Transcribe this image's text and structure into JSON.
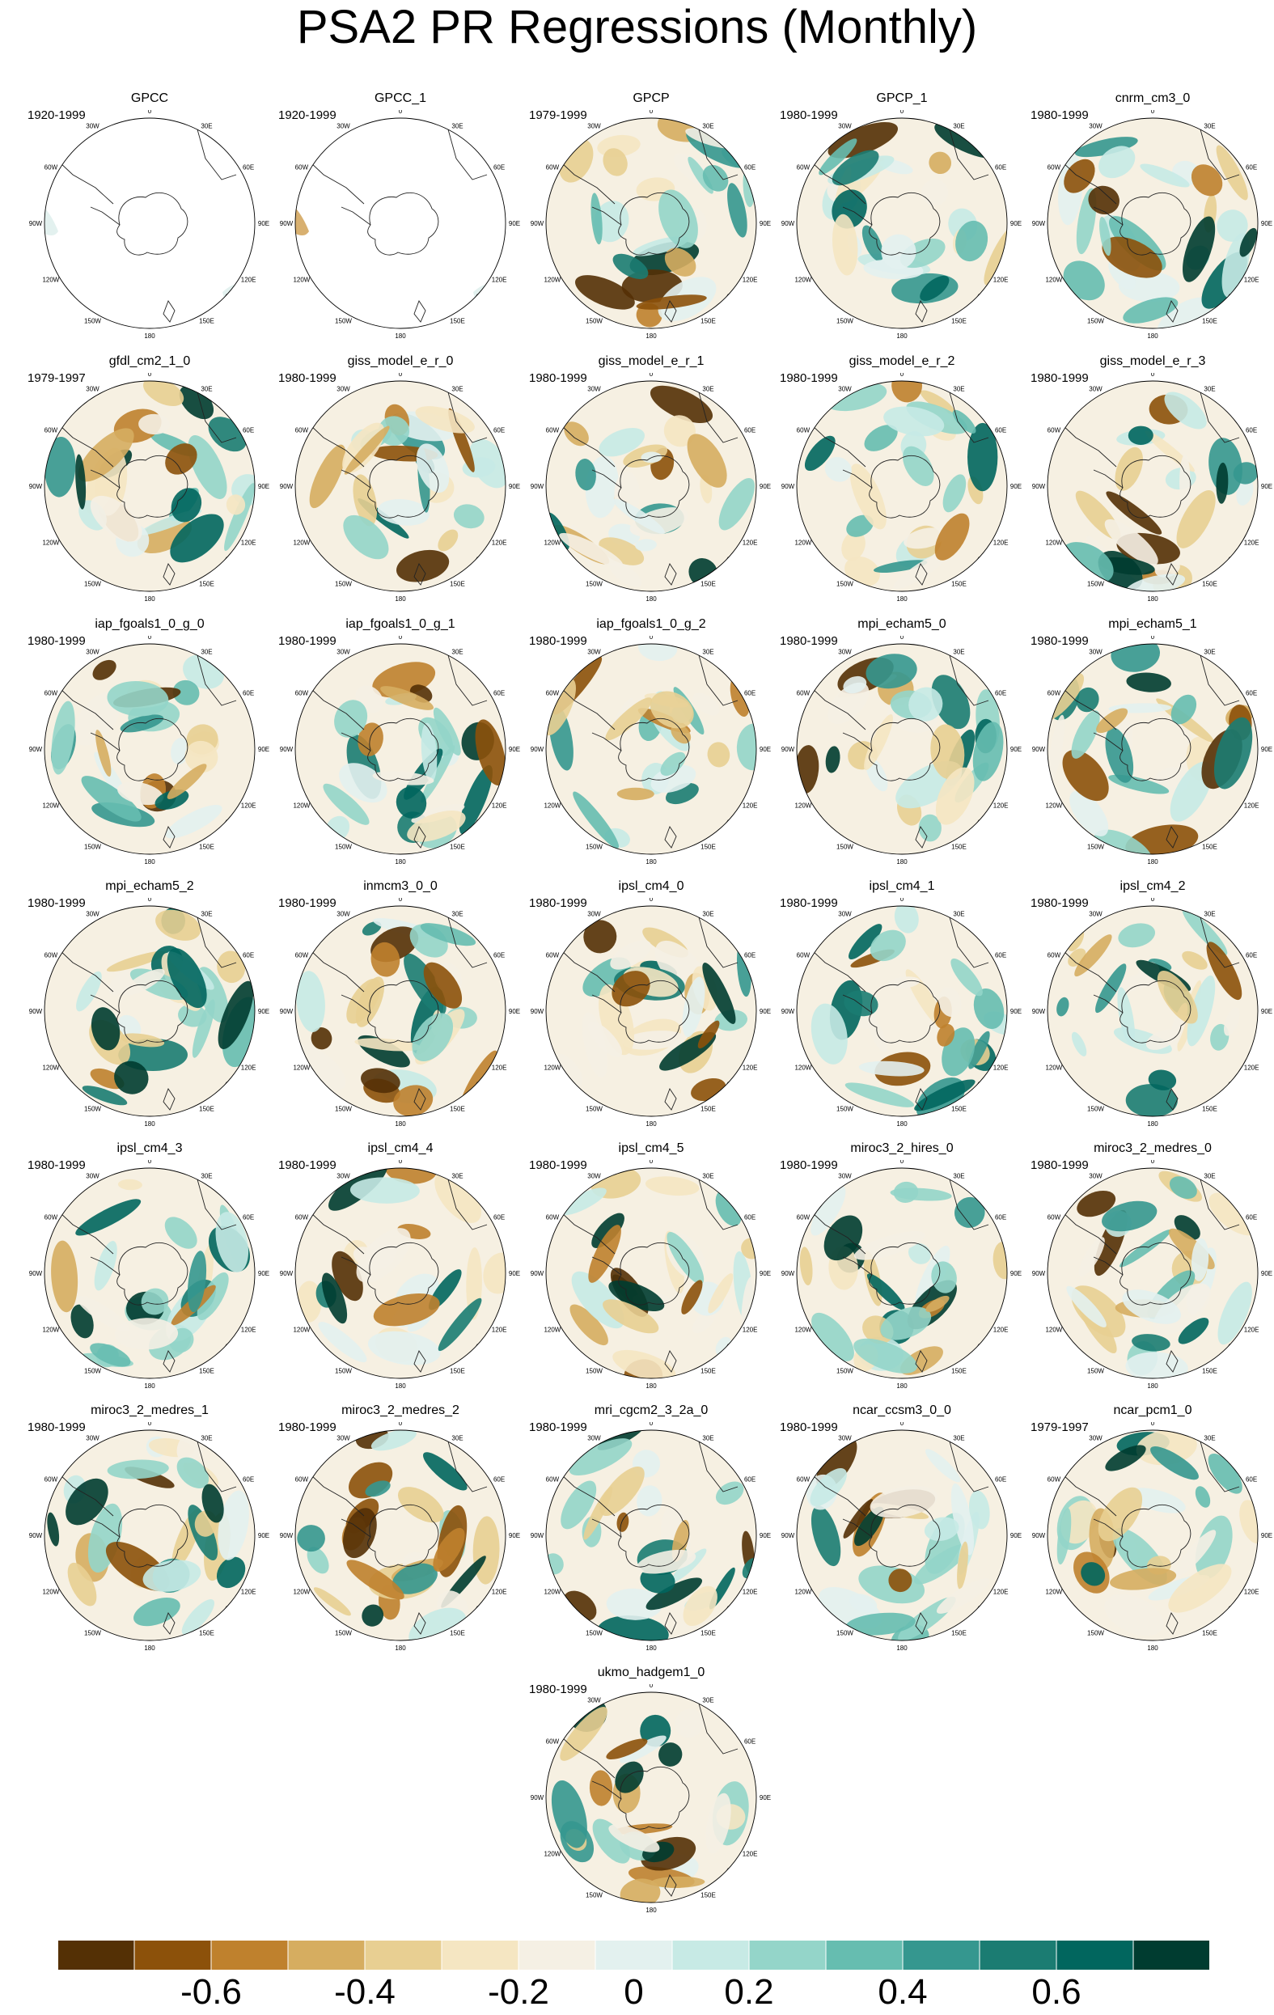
{
  "title": "PSA2 PR Regressions (Monthly)",
  "lon_labels": [
    "0",
    "30E",
    "60E",
    "90E",
    "120E",
    "150E",
    "180",
    "150W",
    "120W",
    "90W",
    "60W",
    "30W"
  ],
  "panels": [
    {
      "name": "GPCC",
      "years": "1920-1999"
    },
    {
      "name": "GPCC_1",
      "years": "1920-1999"
    },
    {
      "name": "GPCP",
      "years": "1979-1999"
    },
    {
      "name": "GPCP_1",
      "years": "1980-1999"
    },
    {
      "name": "cnrm_cm3_0",
      "years": "1980-1999"
    },
    {
      "name": "gfdl_cm2_1_0",
      "years": "1979-1997"
    },
    {
      "name": "giss_model_e_r_0",
      "years": "1980-1999"
    },
    {
      "name": "giss_model_e_r_1",
      "years": "1980-1999"
    },
    {
      "name": "giss_model_e_r_2",
      "years": "1980-1999"
    },
    {
      "name": "giss_model_e_r_3",
      "years": "1980-1999"
    },
    {
      "name": "iap_fgoals1_0_g_0",
      "years": "1980-1999"
    },
    {
      "name": "iap_fgoals1_0_g_1",
      "years": "1980-1999"
    },
    {
      "name": "iap_fgoals1_0_g_2",
      "years": "1980-1999"
    },
    {
      "name": "mpi_echam5_0",
      "years": "1980-1999"
    },
    {
      "name": "mpi_echam5_1",
      "years": "1980-1999"
    },
    {
      "name": "mpi_echam5_2",
      "years": "1980-1999"
    },
    {
      "name": "inmcm3_0_0",
      "years": "1980-1999"
    },
    {
      "name": "ipsl_cm4_0",
      "years": "1980-1999"
    },
    {
      "name": "ipsl_cm4_1",
      "years": "1980-1999"
    },
    {
      "name": "ipsl_cm4_2",
      "years": "1980-1999"
    },
    {
      "name": "ipsl_cm4_3",
      "years": "1980-1999"
    },
    {
      "name": "ipsl_cm4_4",
      "years": "1980-1999"
    },
    {
      "name": "ipsl_cm4_5",
      "years": "1980-1999"
    },
    {
      "name": "miroc3_2_hires_0",
      "years": "1980-1999"
    },
    {
      "name": "miroc3_2_medres_0",
      "years": "1980-1999"
    },
    {
      "name": "miroc3_2_medres_1",
      "years": "1980-1999"
    },
    {
      "name": "miroc3_2_medres_2",
      "years": "1980-1999"
    },
    {
      "name": "mri_cgcm2_3_2a_0",
      "years": "1980-1999"
    },
    {
      "name": "ncar_ccsm3_0_0",
      "years": "1980-1999"
    },
    {
      "name": "ncar_pcm1_0",
      "years": "1979-1997"
    },
    {
      "name": "ukmo_hadgem1_0",
      "years": "1980-1999"
    }
  ],
  "colorbar": {
    "colors": [
      "#543005",
      "#8c510a",
      "#bf812d",
      "#d6ad60",
      "#e8cf92",
      "#f5e6c2",
      "#f5f0e4",
      "#e3f1ef",
      "#c7eae5",
      "#94d5c9",
      "#66bdb0",
      "#35978f",
      "#1b7c72",
      "#01665e",
      "#003c30"
    ],
    "tick_labels": [
      "-0.6",
      "-0.4",
      "-0.2",
      "0",
      "0.2",
      "0.4",
      "0.6"
    ]
  }
}
